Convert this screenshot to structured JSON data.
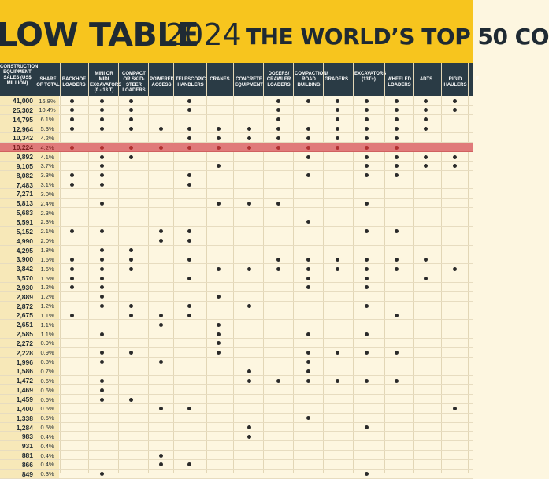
{
  "title": {
    "main": "LOW TABLE",
    "year": "2024",
    "subtitle": "THE WORLD’S TOP 50 CO"
  },
  "columns": [
    "CONSTRUCTION EQUIPMENT SALES (US$ MILLION)",
    "SHARE OF TOTAL",
    "BACKHOE LOADERS",
    "MINI OR MIDI EXCAVATORS (0 - 13 T)",
    "COMPACT OR SKID-STEER LOADERS",
    "POWERED ACCESS",
    "TELESCOPIC HANDLERS",
    "CRANES",
    "CONCRETE EQUIPMENT",
    "DOZERS/ CRAWLER LOADERS",
    "COMPACTION/ ROAD BUILDING",
    "GRADERS",
    "EXCAVATORS (13T+)",
    "WHEELED LOADERS",
    "ADTS",
    "RIGID HAULERS",
    "F"
  ],
  "rows": [
    {
      "sales": "41,000",
      "share": "16.8%",
      "dots": [
        2,
        3,
        4,
        6,
        9,
        10,
        11,
        12,
        13,
        14,
        15
      ]
    },
    {
      "sales": "25,302",
      "share": "10.4%",
      "dots": [
        2,
        3,
        4,
        6,
        9,
        11,
        12,
        13,
        14,
        15
      ]
    },
    {
      "sales": "14,795",
      "share": "6.1%",
      "dots": [
        2,
        3,
        4,
        9,
        11,
        12,
        13,
        14
      ]
    },
    {
      "sales": "12,964",
      "share": "5.3%",
      "dots": [
        2,
        3,
        4,
        5,
        6,
        7,
        8,
        9,
        10,
        11,
        12,
        13,
        14
      ]
    },
    {
      "sales": "10,342",
      "share": "4.2%",
      "dots": [
        6,
        7,
        8,
        9,
        10,
        11,
        12,
        13
      ]
    },
    {
      "sales": "10,224",
      "share": "4.2%",
      "dots": [
        2,
        3,
        4,
        5,
        6,
        7,
        8,
        9,
        10,
        11,
        12,
        13
      ],
      "highlight": true
    },
    {
      "sales": "9,892",
      "share": "4.1%",
      "dots": [
        3,
        4,
        10,
        12,
        13,
        14,
        15
      ]
    },
    {
      "sales": "9,105",
      "share": "3.7%",
      "dots": [
        3,
        7,
        12,
        13,
        14,
        15
      ]
    },
    {
      "sales": "8,082",
      "share": "3.3%",
      "dots": [
        2,
        3,
        6,
        10,
        12,
        13
      ]
    },
    {
      "sales": "7,483",
      "share": "3.1%",
      "dots": [
        2,
        3,
        6
      ]
    },
    {
      "sales": "7,271",
      "share": "3.0%",
      "dots": []
    },
    {
      "sales": "5,813",
      "share": "2.4%",
      "dots": [
        3,
        7,
        8,
        9,
        12
      ]
    },
    {
      "sales": "5,683",
      "share": "2.3%",
      "dots": []
    },
    {
      "sales": "5,591",
      "share": "2.3%",
      "dots": [
        10
      ]
    },
    {
      "sales": "5,152",
      "share": "2.1%",
      "dots": [
        2,
        3,
        5,
        6,
        12,
        13
      ]
    },
    {
      "sales": "4,990",
      "share": "2.0%",
      "dots": [
        5,
        6
      ]
    },
    {
      "sales": "4,295",
      "share": "1.8%",
      "dots": [
        3,
        4
      ]
    },
    {
      "sales": "3,900",
      "share": "1.6%",
      "dots": [
        2,
        3,
        4,
        6,
        9,
        10,
        11,
        12,
        13,
        14
      ]
    },
    {
      "sales": "3,842",
      "share": "1.6%",
      "dots": [
        2,
        3,
        4,
        7,
        8,
        9,
        10,
        11,
        12,
        13,
        15
      ]
    },
    {
      "sales": "3,570",
      "share": "1.5%",
      "dots": [
        2,
        3,
        6,
        10,
        12,
        14
      ]
    },
    {
      "sales": "2,930",
      "share": "1.2%",
      "dots": [
        2,
        3,
        10,
        12
      ]
    },
    {
      "sales": "2,889",
      "share": "1.2%",
      "dots": [
        3,
        7
      ]
    },
    {
      "sales": "2,872",
      "share": "1.2%",
      "dots": [
        3,
        4,
        6,
        8,
        12
      ]
    },
    {
      "sales": "2,675",
      "share": "1.1%",
      "dots": [
        2,
        4,
        5,
        6,
        13
      ]
    },
    {
      "sales": "2,651",
      "share": "1.1%",
      "dots": [
        5,
        7
      ]
    },
    {
      "sales": "2,585",
      "share": "1.1%",
      "dots": [
        3,
        7,
        10,
        12
      ]
    },
    {
      "sales": "2,272",
      "share": "0.9%",
      "dots": [
        7
      ]
    },
    {
      "sales": "2,228",
      "share": "0.9%",
      "dots": [
        3,
        4,
        7,
        10,
        11,
        12,
        13
      ]
    },
    {
      "sales": "1,996",
      "share": "0.8%",
      "dots": [
        3,
        5,
        10
      ]
    },
    {
      "sales": "1,586",
      "share": "0.7%",
      "dots": [
        8,
        10
      ]
    },
    {
      "sales": "1,472",
      "share": "0.6%",
      "dots": [
        3,
        8,
        9,
        10,
        11,
        12,
        13
      ]
    },
    {
      "sales": "1,469",
      "share": "0.6%",
      "dots": [
        3
      ]
    },
    {
      "sales": "1,459",
      "share": "0.6%",
      "dots": [
        3,
        4
      ]
    },
    {
      "sales": "1,400",
      "share": "0.6%",
      "dots": [
        5,
        6,
        15
      ]
    },
    {
      "sales": "1,338",
      "share": "0.5%",
      "dots": [
        10
      ]
    },
    {
      "sales": "1,284",
      "share": "0.5%",
      "dots": [
        8,
        12
      ]
    },
    {
      "sales": "983",
      "share": "0.4%",
      "dots": [
        8
      ]
    },
    {
      "sales": "931",
      "share": "0.4%",
      "dots": []
    },
    {
      "sales": "881",
      "share": "0.4%",
      "dots": [
        5
      ]
    },
    {
      "sales": "866",
      "share": "0.4%",
      "dots": [
        5,
        6
      ]
    },
    {
      "sales": "849",
      "share": "0.3%",
      "dots": [
        3,
        12
      ]
    }
  ]
}
